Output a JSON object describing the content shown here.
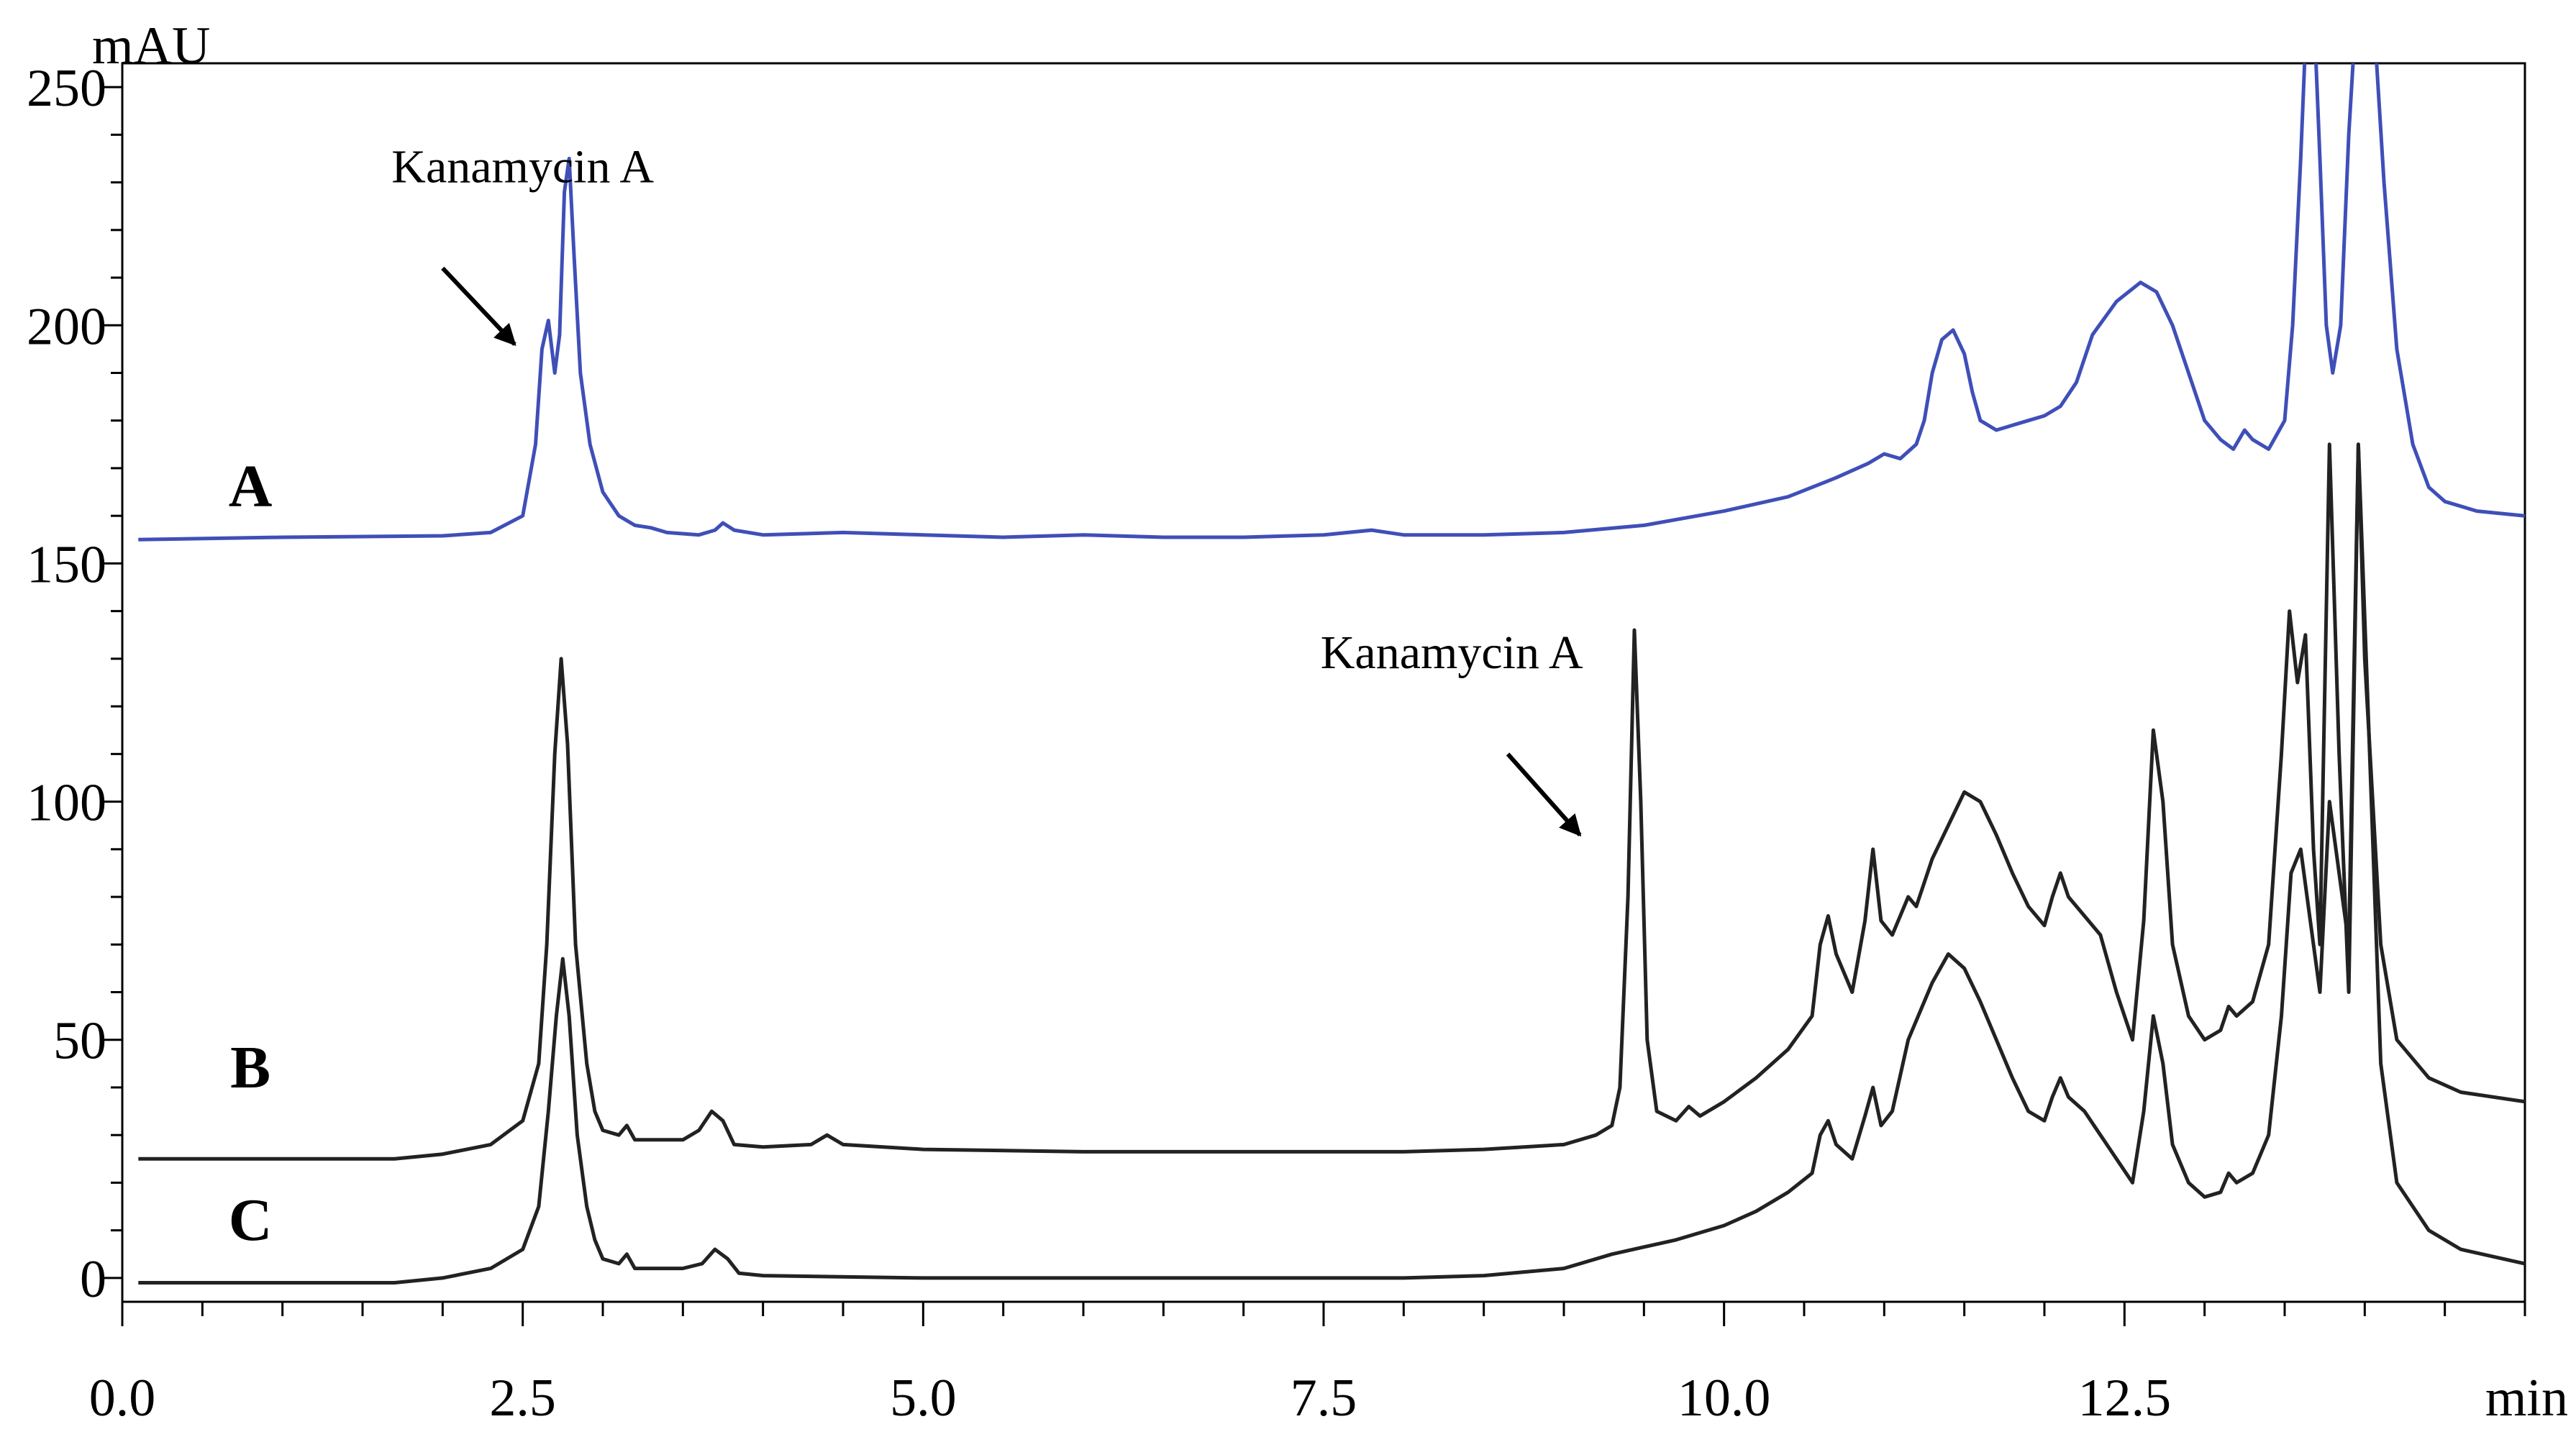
{
  "chart_data": {
    "type": "line",
    "title": "",
    "y_unit_label": "mAU",
    "x_unit_label": "min",
    "xlim": [
      0,
      15.0
    ],
    "ylim": [
      -5,
      255
    ],
    "x_ticks": [
      0.0,
      2.5,
      5.0,
      7.5,
      10.0,
      12.5
    ],
    "x_tick_labels": [
      "0.0",
      "2.5",
      "5.0",
      "7.5",
      "10.0",
      "12.5"
    ],
    "x_minor_step": 0.5,
    "y_ticks": [
      0,
      50,
      100,
      150,
      200,
      250
    ],
    "y_tick_labels": [
      "0",
      "50",
      "100",
      "150",
      "200",
      "250"
    ],
    "y_minor_step": 10,
    "grid": false,
    "series": [
      {
        "name": "A",
        "color": "#3f4fb8",
        "points": [
          [
            0.1,
            155
          ],
          [
            1.0,
            155.5
          ],
          [
            2.0,
            155.8
          ],
          [
            2.3,
            156.5
          ],
          [
            2.5,
            160
          ],
          [
            2.58,
            175
          ],
          [
            2.62,
            195
          ],
          [
            2.66,
            201
          ],
          [
            2.7,
            190
          ],
          [
            2.73,
            198
          ],
          [
            2.76,
            228
          ],
          [
            2.79,
            235
          ],
          [
            2.82,
            215
          ],
          [
            2.86,
            190
          ],
          [
            2.92,
            175
          ],
          [
            3.0,
            165
          ],
          [
            3.1,
            160
          ],
          [
            3.2,
            158
          ],
          [
            3.3,
            157.5
          ],
          [
            3.4,
            156.5
          ],
          [
            3.6,
            156
          ],
          [
            3.7,
            157
          ],
          [
            3.75,
            158.5
          ],
          [
            3.82,
            157
          ],
          [
            4.0,
            156
          ],
          [
            4.5,
            156.5
          ],
          [
            5.0,
            156
          ],
          [
            5.5,
            155.5
          ],
          [
            6.0,
            156
          ],
          [
            6.5,
            155.5
          ],
          [
            7.0,
            155.5
          ],
          [
            7.5,
            156
          ],
          [
            7.8,
            157
          ],
          [
            8.0,
            156
          ],
          [
            8.5,
            156
          ],
          [
            9.0,
            156.5
          ],
          [
            9.5,
            158
          ],
          [
            10.0,
            161
          ],
          [
            10.4,
            164
          ],
          [
            10.7,
            168
          ],
          [
            10.9,
            171
          ],
          [
            11.0,
            173
          ],
          [
            11.1,
            172
          ],
          [
            11.2,
            175
          ],
          [
            11.25,
            180
          ],
          [
            11.3,
            190
          ],
          [
            11.36,
            197
          ],
          [
            11.43,
            199
          ],
          [
            11.5,
            194
          ],
          [
            11.55,
            186
          ],
          [
            11.6,
            180
          ],
          [
            11.7,
            178
          ],
          [
            11.9,
            180
          ],
          [
            12.0,
            181
          ],
          [
            12.1,
            183
          ],
          [
            12.2,
            188
          ],
          [
            12.3,
            198
          ],
          [
            12.45,
            205
          ],
          [
            12.6,
            209
          ],
          [
            12.7,
            207
          ],
          [
            12.8,
            200
          ],
          [
            12.9,
            190
          ],
          [
            13.0,
            180
          ],
          [
            13.1,
            176
          ],
          [
            13.18,
            174
          ],
          [
            13.25,
            178
          ],
          [
            13.3,
            176
          ],
          [
            13.4,
            174
          ],
          [
            13.5,
            180
          ],
          [
            13.55,
            200
          ],
          [
            13.6,
            235
          ],
          [
            13.64,
            268
          ],
          [
            13.68,
            268
          ],
          [
            13.72,
            235
          ],
          [
            13.76,
            200
          ],
          [
            13.8,
            190
          ],
          [
            13.85,
            200
          ],
          [
            13.9,
            240
          ],
          [
            13.95,
            268
          ],
          [
            14.05,
            268
          ],
          [
            14.12,
            230
          ],
          [
            14.2,
            195
          ],
          [
            14.3,
            175
          ],
          [
            14.4,
            166
          ],
          [
            14.5,
            163
          ],
          [
            14.7,
            161
          ],
          [
            15.0,
            160
          ]
        ]
      },
      {
        "name": "B",
        "color": "#222222",
        "points": [
          [
            0.1,
            25
          ],
          [
            1.7,
            25
          ],
          [
            2.0,
            26
          ],
          [
            2.3,
            28
          ],
          [
            2.5,
            33
          ],
          [
            2.6,
            45
          ],
          [
            2.65,
            70
          ],
          [
            2.7,
            110
          ],
          [
            2.74,
            130
          ],
          [
            2.78,
            112
          ],
          [
            2.83,
            70
          ],
          [
            2.9,
            45
          ],
          [
            2.95,
            35
          ],
          [
            3.0,
            31
          ],
          [
            3.1,
            30
          ],
          [
            3.15,
            32
          ],
          [
            3.2,
            29
          ],
          [
            3.5,
            29
          ],
          [
            3.6,
            31
          ],
          [
            3.68,
            35
          ],
          [
            3.75,
            33
          ],
          [
            3.82,
            28
          ],
          [
            4.0,
            27.5
          ],
          [
            4.3,
            28
          ],
          [
            4.4,
            30
          ],
          [
            4.5,
            28
          ],
          [
            5.0,
            27
          ],
          [
            6.0,
            26.5
          ],
          [
            7.0,
            26.5
          ],
          [
            8.0,
            26.5
          ],
          [
            8.5,
            27
          ],
          [
            9.0,
            28
          ],
          [
            9.2,
            30
          ],
          [
            9.3,
            32
          ],
          [
            9.35,
            40
          ],
          [
            9.4,
            80
          ],
          [
            9.44,
            136
          ],
          [
            9.48,
            100
          ],
          [
            9.52,
            50
          ],
          [
            9.58,
            35
          ],
          [
            9.7,
            33
          ],
          [
            9.78,
            36
          ],
          [
            9.85,
            34
          ],
          [
            10.0,
            37
          ],
          [
            10.2,
            42
          ],
          [
            10.4,
            48
          ],
          [
            10.55,
            55
          ],
          [
            10.6,
            70
          ],
          [
            10.65,
            76
          ],
          [
            10.7,
            68
          ],
          [
            10.8,
            60
          ],
          [
            10.88,
            75
          ],
          [
            10.93,
            90
          ],
          [
            10.98,
            75
          ],
          [
            11.05,
            72
          ],
          [
            11.15,
            80
          ],
          [
            11.2,
            78
          ],
          [
            11.3,
            88
          ],
          [
            11.4,
            95
          ],
          [
            11.5,
            102
          ],
          [
            11.6,
            100
          ],
          [
            11.7,
            93
          ],
          [
            11.8,
            85
          ],
          [
            11.9,
            78
          ],
          [
            12.0,
            74
          ],
          [
            12.05,
            80
          ],
          [
            12.1,
            85
          ],
          [
            12.15,
            80
          ],
          [
            12.25,
            76
          ],
          [
            12.35,
            72
          ],
          [
            12.45,
            60
          ],
          [
            12.55,
            50
          ],
          [
            12.62,
            75
          ],
          [
            12.68,
            115
          ],
          [
            12.74,
            100
          ],
          [
            12.8,
            70
          ],
          [
            12.9,
            55
          ],
          [
            13.0,
            50
          ],
          [
            13.1,
            52
          ],
          [
            13.15,
            57
          ],
          [
            13.2,
            55
          ],
          [
            13.3,
            58
          ],
          [
            13.4,
            70
          ],
          [
            13.48,
            110
          ],
          [
            13.53,
            140
          ],
          [
            13.58,
            125
          ],
          [
            13.63,
            135
          ],
          [
            13.68,
            90
          ],
          [
            13.72,
            70
          ],
          [
            13.78,
            175
          ],
          [
            13.84,
            110
          ],
          [
            13.9,
            60
          ],
          [
            13.96,
            175
          ],
          [
            14.0,
            130
          ],
          [
            14.1,
            70
          ],
          [
            14.2,
            50
          ],
          [
            14.4,
            42
          ],
          [
            14.6,
            39
          ],
          [
            15.0,
            37
          ]
        ]
      },
      {
        "name": "C",
        "color": "#222222",
        "points": [
          [
            0.1,
            -1
          ],
          [
            1.7,
            -1
          ],
          [
            2.0,
            0
          ],
          [
            2.3,
            2
          ],
          [
            2.5,
            6
          ],
          [
            2.6,
            15
          ],
          [
            2.66,
            35
          ],
          [
            2.71,
            55
          ],
          [
            2.75,
            67
          ],
          [
            2.79,
            55
          ],
          [
            2.84,
            30
          ],
          [
            2.9,
            15
          ],
          [
            2.95,
            8
          ],
          [
            3.0,
            4
          ],
          [
            3.1,
            3
          ],
          [
            3.15,
            5
          ],
          [
            3.2,
            2
          ],
          [
            3.5,
            2
          ],
          [
            3.62,
            3
          ],
          [
            3.7,
            6
          ],
          [
            3.78,
            4
          ],
          [
            3.85,
            1
          ],
          [
            4.0,
            0.5
          ],
          [
            5.0,
            0
          ],
          [
            6.0,
            0
          ],
          [
            7.0,
            0
          ],
          [
            8.0,
            0
          ],
          [
            8.5,
            0.5
          ],
          [
            9.0,
            2
          ],
          [
            9.3,
            5
          ],
          [
            9.7,
            8
          ],
          [
            10.0,
            11
          ],
          [
            10.2,
            14
          ],
          [
            10.4,
            18
          ],
          [
            10.55,
            22
          ],
          [
            10.6,
            30
          ],
          [
            10.65,
            33
          ],
          [
            10.7,
            28
          ],
          [
            10.8,
            25
          ],
          [
            10.88,
            34
          ],
          [
            10.93,
            40
          ],
          [
            10.98,
            32
          ],
          [
            11.05,
            35
          ],
          [
            11.15,
            50
          ],
          [
            11.3,
            62
          ],
          [
            11.4,
            68
          ],
          [
            11.5,
            65
          ],
          [
            11.6,
            58
          ],
          [
            11.7,
            50
          ],
          [
            11.8,
            42
          ],
          [
            11.9,
            35
          ],
          [
            12.0,
            33
          ],
          [
            12.05,
            38
          ],
          [
            12.1,
            42
          ],
          [
            12.15,
            38
          ],
          [
            12.25,
            35
          ],
          [
            12.35,
            30
          ],
          [
            12.45,
            25
          ],
          [
            12.55,
            20
          ],
          [
            12.62,
            35
          ],
          [
            12.68,
            55
          ],
          [
            12.74,
            45
          ],
          [
            12.8,
            28
          ],
          [
            12.9,
            20
          ],
          [
            13.0,
            17
          ],
          [
            13.1,
            18
          ],
          [
            13.15,
            22
          ],
          [
            13.2,
            20
          ],
          [
            13.3,
            22
          ],
          [
            13.4,
            30
          ],
          [
            13.48,
            55
          ],
          [
            13.54,
            85
          ],
          [
            13.6,
            90
          ],
          [
            13.66,
            75
          ],
          [
            13.72,
            60
          ],
          [
            13.78,
            100
          ],
          [
            13.84,
            85
          ],
          [
            13.9,
            70
          ],
          [
            13.96,
            175
          ],
          [
            14.02,
            120
          ],
          [
            14.1,
            45
          ],
          [
            14.2,
            20
          ],
          [
            14.4,
            10
          ],
          [
            14.6,
            6
          ],
          [
            15.0,
            3
          ]
        ]
      }
    ],
    "trace_labels": [
      {
        "text": "A",
        "x": 0.8,
        "y": 162
      },
      {
        "text": "B",
        "x": 0.8,
        "y": 40
      },
      {
        "text": "C",
        "x": 0.8,
        "y": 8
      }
    ],
    "annotations": [
      {
        "text": "Kanamycin A",
        "text_x": 2.5,
        "text_y": 230,
        "arrow_from": [
          2.0,
          212
        ],
        "arrow_to": [
          2.45,
          196
        ]
      },
      {
        "text": "Kanamycin A",
        "text_x": 8.3,
        "text_y": 128,
        "arrow_from": [
          8.65,
          110
        ],
        "arrow_to": [
          9.1,
          93
        ]
      }
    ]
  }
}
